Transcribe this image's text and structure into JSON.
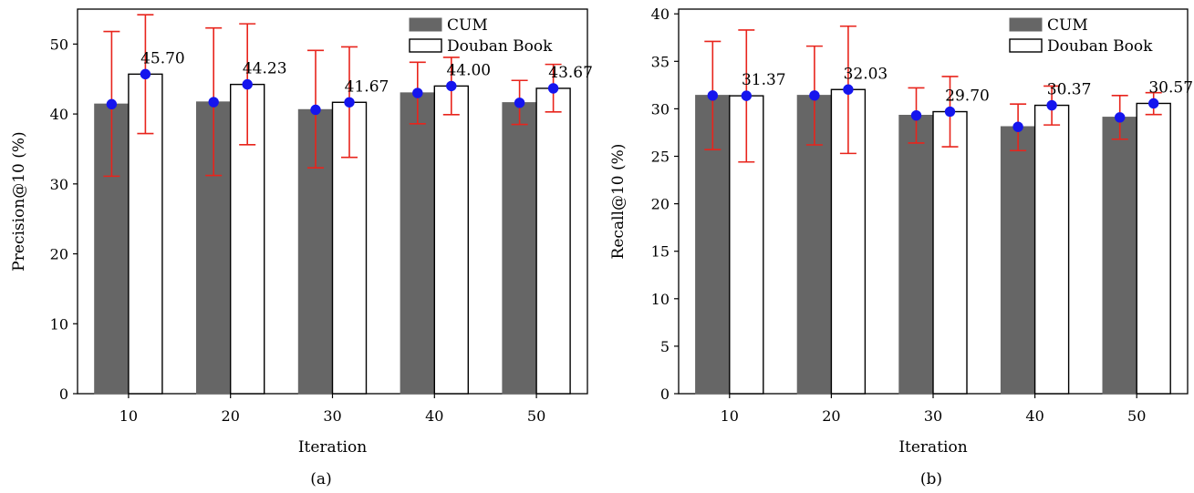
{
  "chart_data": [
    {
      "type": "bar",
      "caption": "(a)",
      "xlabel": "Iteration",
      "ylabel": "Precision@10 (%)",
      "categories": [
        "10",
        "20",
        "30",
        "40",
        "50"
      ],
      "ylim": [
        0,
        55
      ],
      "yticks": [
        0,
        10,
        20,
        30,
        40,
        50
      ],
      "series": [
        {
          "name": "CUM",
          "color": "#666666",
          "values": [
            41.4,
            41.7,
            40.6,
            43.0,
            41.6
          ],
          "err_low": [
            31.1,
            31.2,
            32.3,
            38.6,
            38.5
          ],
          "err_high": [
            51.8,
            52.3,
            49.1,
            47.4,
            44.8
          ]
        },
        {
          "name": "Douban Book",
          "color": "#ffffff",
          "values": [
            45.7,
            44.23,
            41.67,
            44.0,
            43.67
          ],
          "labels": [
            "45.70",
            "44.23",
            "41.67",
            "44.00",
            "43.67"
          ],
          "err_low": [
            37.2,
            35.6,
            33.8,
            39.9,
            40.3
          ],
          "err_high": [
            54.2,
            52.9,
            49.6,
            48.1,
            47.1
          ]
        }
      ],
      "legend_position": "top-right",
      "grid": false
    },
    {
      "type": "bar",
      "caption": "(b)",
      "xlabel": "Iteration",
      "ylabel": "Recall@10 (%)",
      "categories": [
        "10",
        "20",
        "30",
        "40",
        "50"
      ],
      "ylim": [
        0,
        40.5
      ],
      "yticks": [
        0,
        5,
        10,
        15,
        20,
        25,
        30,
        35,
        40
      ],
      "series": [
        {
          "name": "CUM",
          "color": "#666666",
          "values": [
            31.4,
            31.4,
            29.3,
            28.1,
            29.1
          ],
          "err_low": [
            25.7,
            26.2,
            26.4,
            25.6,
            26.8
          ],
          "err_high": [
            37.1,
            36.6,
            32.2,
            30.5,
            31.4
          ]
        },
        {
          "name": "Douban Book",
          "color": "#ffffff",
          "values": [
            31.37,
            32.03,
            29.7,
            30.37,
            30.57
          ],
          "labels": [
            "31.37",
            "32.03",
            "29.70",
            "30.37",
            "30.57"
          ],
          "err_low": [
            24.4,
            25.3,
            26.0,
            28.3,
            29.4
          ],
          "err_high": [
            38.3,
            38.7,
            33.4,
            32.4,
            31.7
          ]
        }
      ],
      "legend_position": "top-right",
      "grid": false
    }
  ]
}
